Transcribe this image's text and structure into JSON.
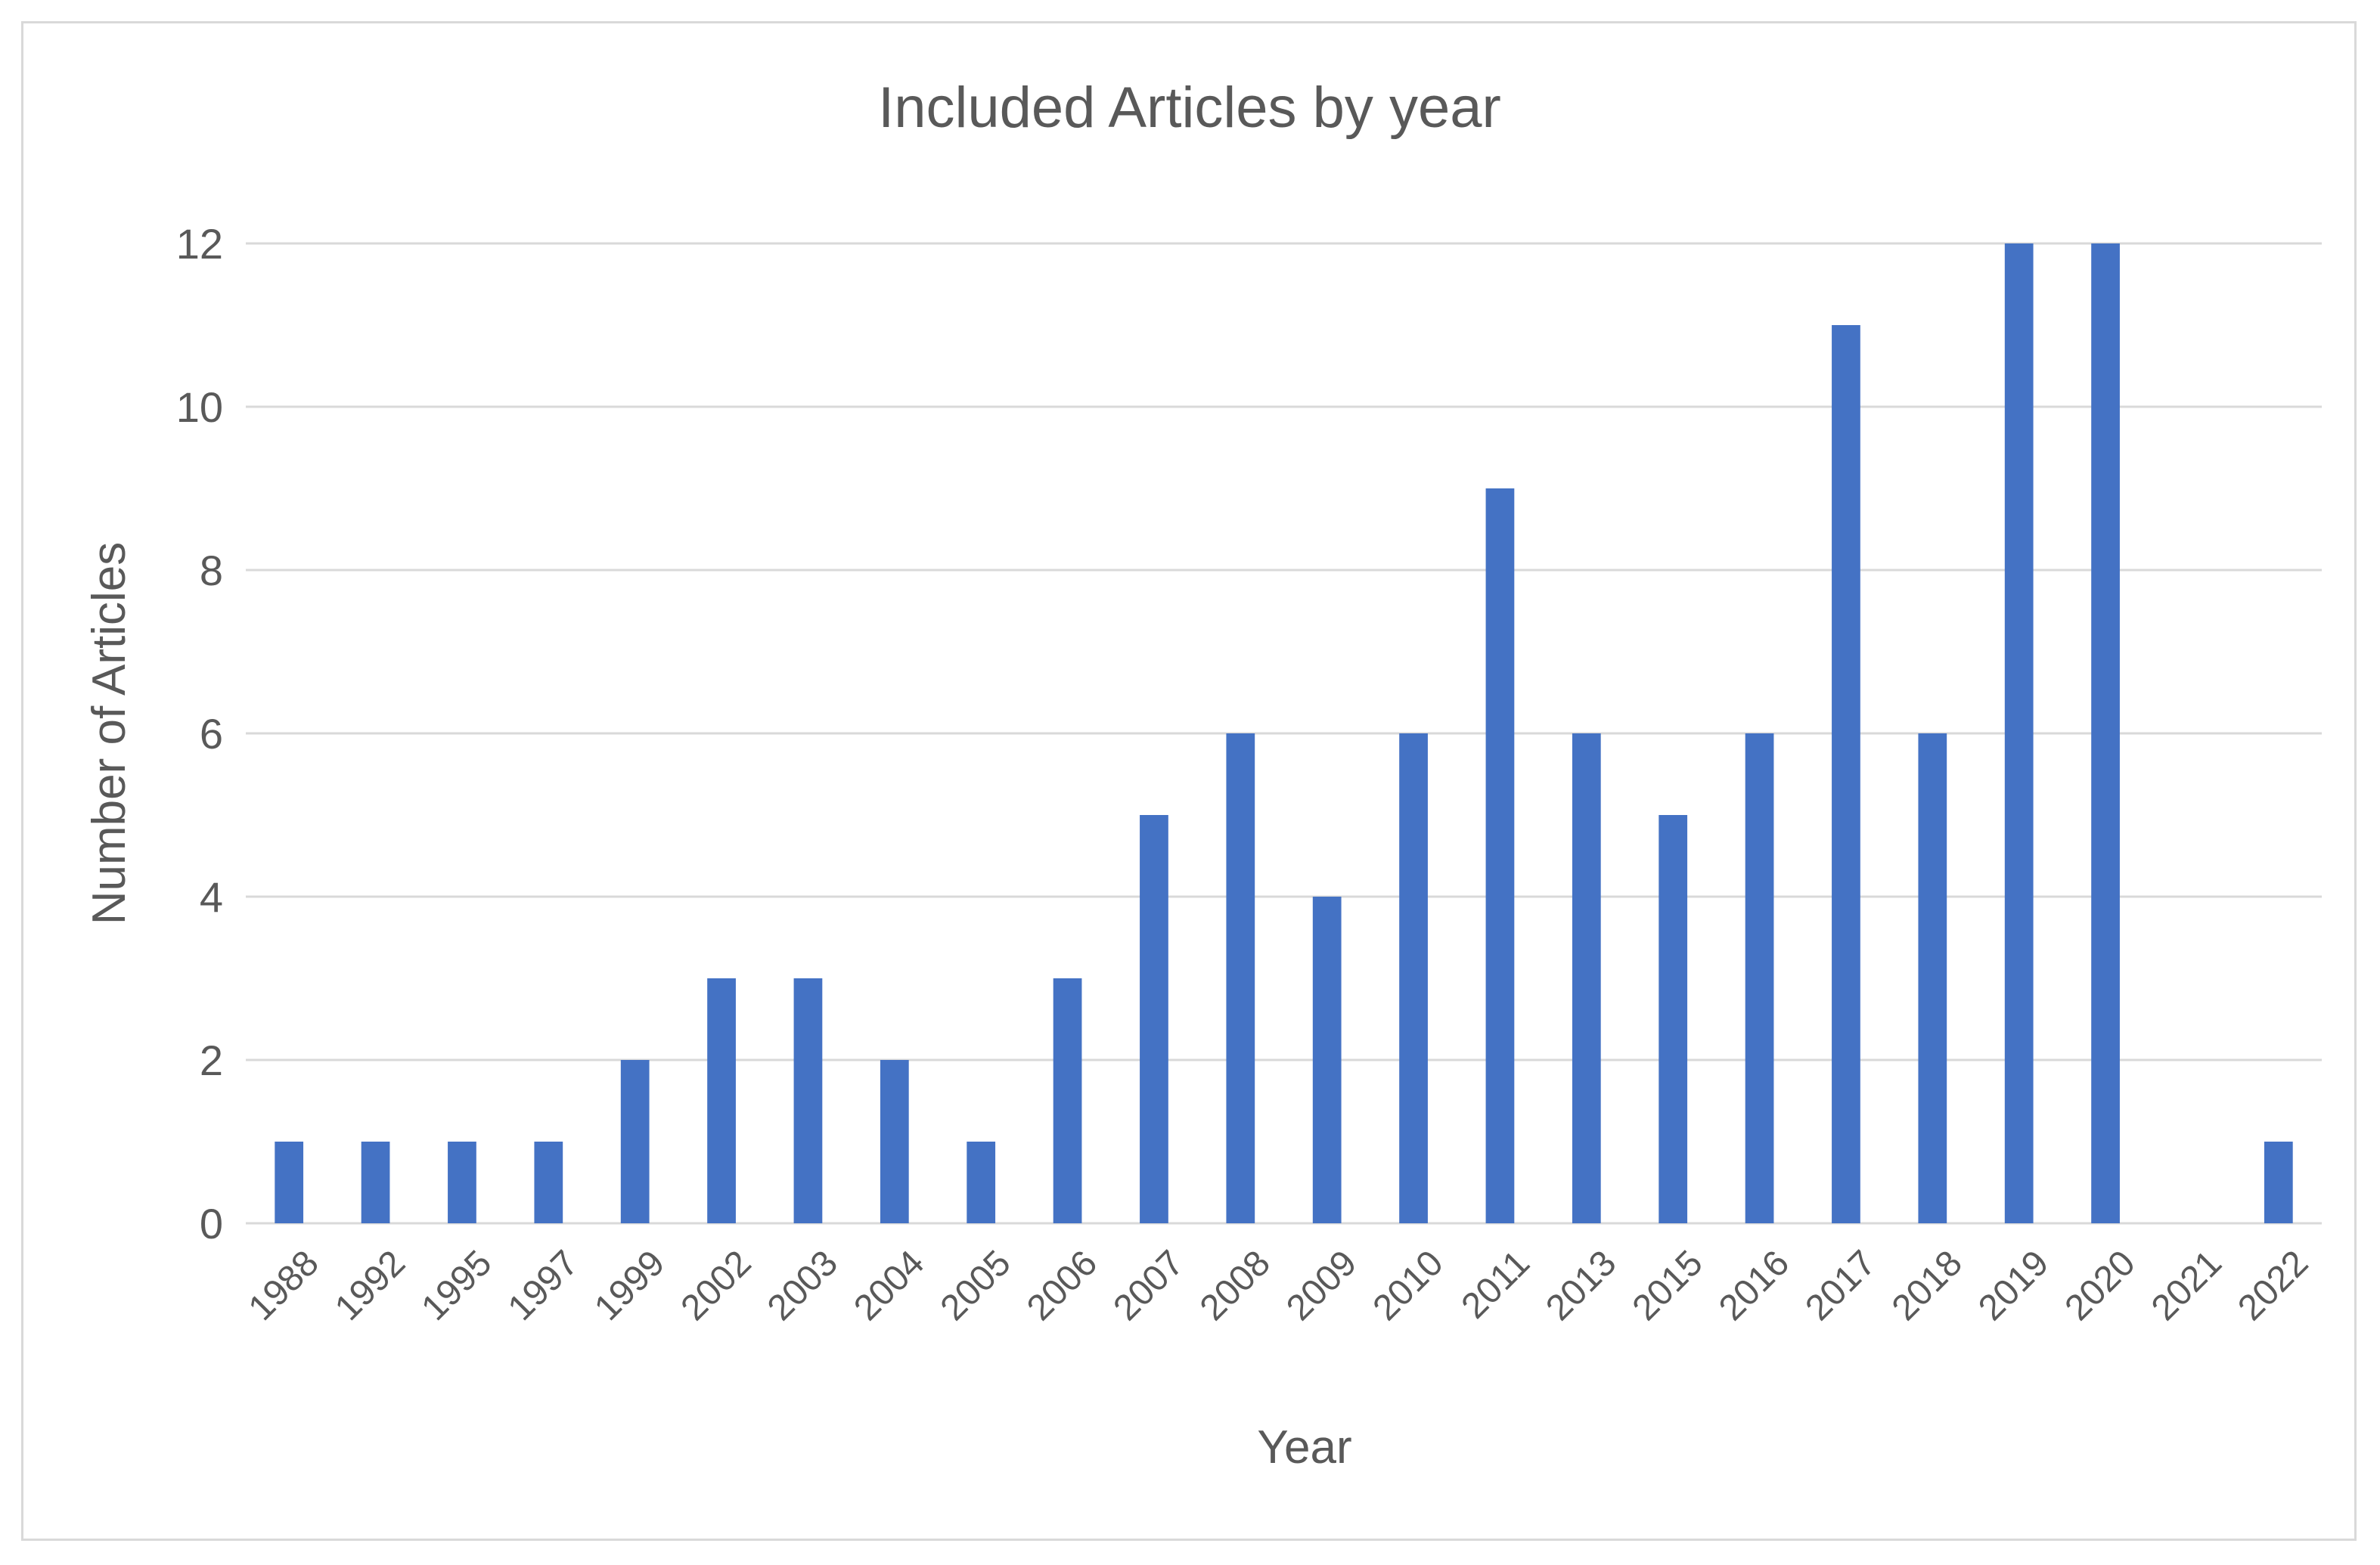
{
  "chart_data": {
    "type": "bar",
    "title": "Included Articles by year",
    "xlabel": "Year",
    "ylabel": "Number of Articles",
    "categories": [
      "1988",
      "1992",
      "1995",
      "1997",
      "1999",
      "2002",
      "2003",
      "2004",
      "2005",
      "2006",
      "2007",
      "2008",
      "2009",
      "2010",
      "2011",
      "2013",
      "2015",
      "2016",
      "2017",
      "2018",
      "2019",
      "2020",
      "2021",
      "2022"
    ],
    "series": [
      {
        "values": [
          1,
          1,
          1,
          1,
          2,
          3,
          3,
          2,
          1,
          3,
          5,
          6,
          4,
          6,
          9,
          6,
          5,
          6,
          11,
          6,
          12,
          12,
          0,
          1
        ]
      }
    ],
    "ylim": [
      0,
      12
    ],
    "yticks": [
      0,
      2,
      4,
      6,
      8,
      10,
      12
    ],
    "grid": true,
    "legend": "none",
    "bar_color": "#4472c4"
  }
}
